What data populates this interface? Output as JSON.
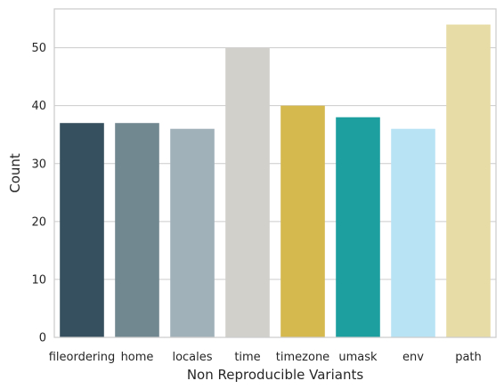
{
  "chart_data": {
    "type": "bar",
    "title": "",
    "xlabel": "Non Reproducible Variants",
    "ylabel": "Count",
    "categories": [
      "fileordering",
      "home",
      "locales",
      "time",
      "timezone",
      "umask",
      "env",
      "path"
    ],
    "values": [
      37,
      37,
      36,
      50,
      40,
      38,
      36,
      54
    ],
    "colors": [
      "#37505f",
      "#728891",
      "#a1b1ba",
      "#d2d0cb",
      "#d5b84e",
      "#1d9fa0",
      "#b8e3f5",
      "#e8dca6"
    ],
    "ylim": [
      0,
      56.7
    ],
    "yticks": [
      0,
      10,
      20,
      30,
      40,
      50
    ],
    "grid": "y",
    "legend": "none"
  }
}
